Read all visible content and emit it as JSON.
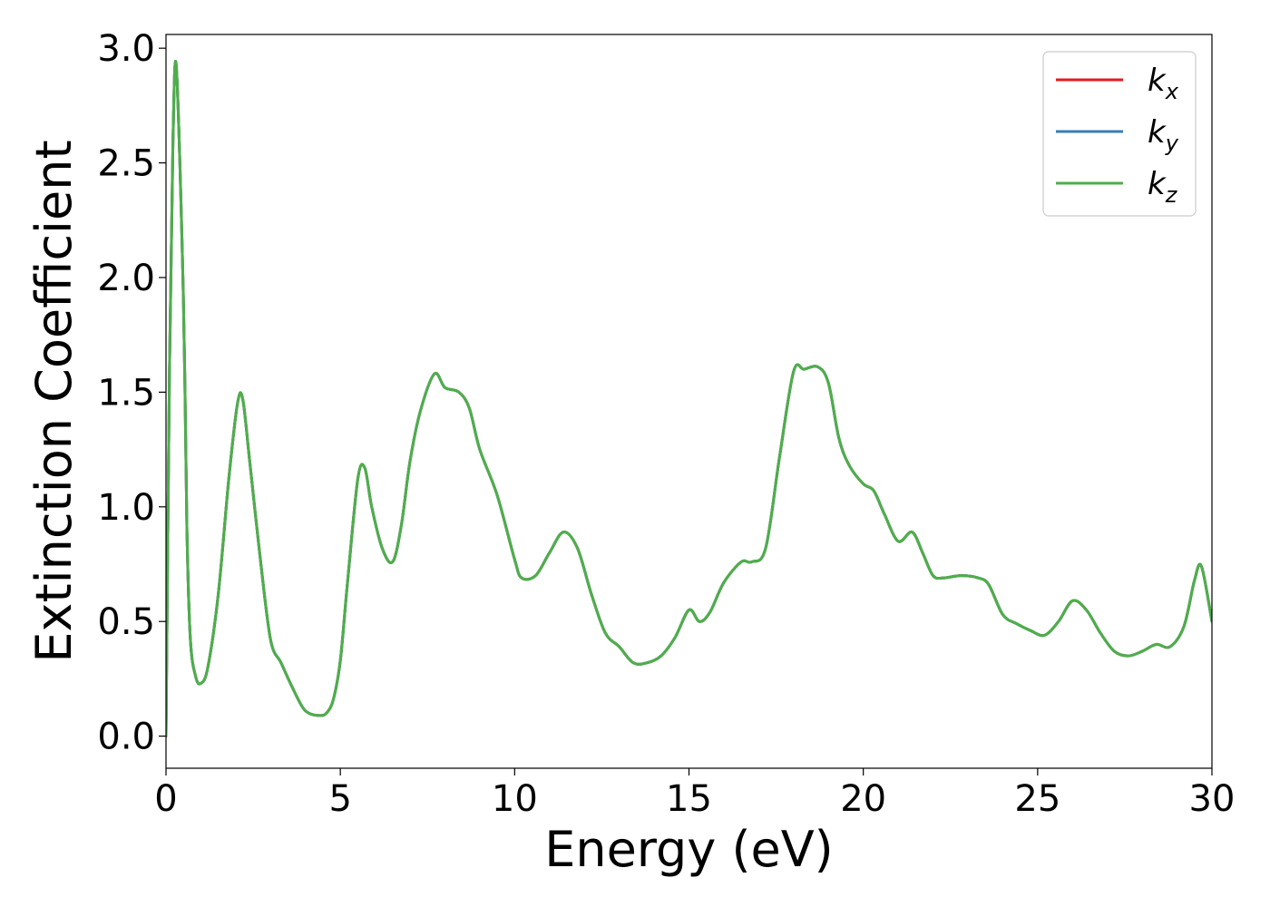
{
  "chart_data": {
    "type": "line",
    "xlabel": "Energy (eV)",
    "ylabel": "Extinction Coefficient",
    "xlim": [
      0,
      30
    ],
    "ylim": [
      -0.14,
      3.06
    ],
    "xticks": [
      0,
      5,
      10,
      15,
      20,
      25,
      30
    ],
    "xtick_labels": [
      "0",
      "5",
      "10",
      "15",
      "20",
      "25",
      "30"
    ],
    "yticks": [
      0.0,
      0.5,
      1.0,
      1.5,
      2.0,
      2.5,
      3.0
    ],
    "ytick_labels": [
      "0.0",
      "0.5",
      "1.0",
      "1.5",
      "2.0",
      "2.5",
      "3.0"
    ],
    "grid": false,
    "legend_position": "top-right",
    "x": [
      0,
      0.1,
      0.2,
      0.3,
      0.5,
      0.6,
      0.7,
      0.85,
      1.0,
      1.2,
      1.5,
      1.8,
      2.05,
      2.2,
      2.4,
      2.7,
      3.0,
      3.3,
      3.6,
      3.9,
      4.1,
      4.4,
      4.6,
      4.8,
      5.0,
      5.2,
      5.5,
      5.7,
      5.9,
      6.2,
      6.5,
      6.75,
      7.0,
      7.3,
      7.7,
      8.0,
      8.4,
      8.7,
      9.0,
      9.5,
      10.0,
      10.2,
      10.6,
      11.0,
      11.4,
      11.8,
      12.2,
      12.6,
      13.0,
      13.4,
      13.8,
      14.2,
      14.6,
      15.0,
      15.3,
      15.6,
      16.0,
      16.5,
      16.8,
      17.2,
      17.6,
      18.0,
      18.3,
      18.7,
      19.0,
      19.3,
      19.6,
      20.0,
      20.3,
      20.6,
      21.0,
      21.4,
      21.7,
      22.0,
      22.3,
      22.8,
      23.3,
      23.6,
      24.0,
      24.4,
      24.8,
      25.2,
      25.6,
      26.0,
      26.4,
      26.8,
      27.2,
      27.6,
      28.0,
      28.4,
      28.8,
      29.2,
      29.5,
      29.7,
      30.0
    ],
    "series": [
      {
        "name": "k_x",
        "color": "#e41a1c",
        "y": [
          0.0,
          1.6,
          2.6,
          2.91,
          1.9,
          0.9,
          0.42,
          0.26,
          0.23,
          0.3,
          0.62,
          1.12,
          1.45,
          1.47,
          1.2,
          0.78,
          0.42,
          0.32,
          0.22,
          0.13,
          0.1,
          0.09,
          0.1,
          0.16,
          0.33,
          0.66,
          1.12,
          1.17,
          1.0,
          0.82,
          0.76,
          0.92,
          1.2,
          1.42,
          1.58,
          1.52,
          1.5,
          1.43,
          1.25,
          1.05,
          0.77,
          0.69,
          0.7,
          0.8,
          0.89,
          0.82,
          0.62,
          0.45,
          0.39,
          0.32,
          0.32,
          0.35,
          0.43,
          0.55,
          0.5,
          0.54,
          0.67,
          0.76,
          0.76,
          0.82,
          1.22,
          1.59,
          1.6,
          1.61,
          1.54,
          1.3,
          1.18,
          1.1,
          1.07,
          0.97,
          0.85,
          0.89,
          0.8,
          0.7,
          0.69,
          0.7,
          0.69,
          0.66,
          0.53,
          0.49,
          0.46,
          0.44,
          0.5,
          0.59,
          0.55,
          0.45,
          0.37,
          0.35,
          0.37,
          0.4,
          0.39,
          0.48,
          0.68,
          0.74,
          0.5
        ]
      },
      {
        "name": "k_y",
        "color": "#377eb8",
        "y": [
          0.0,
          1.6,
          2.6,
          2.91,
          1.9,
          0.9,
          0.42,
          0.26,
          0.23,
          0.3,
          0.62,
          1.12,
          1.45,
          1.47,
          1.2,
          0.78,
          0.42,
          0.32,
          0.22,
          0.13,
          0.1,
          0.09,
          0.1,
          0.16,
          0.33,
          0.66,
          1.12,
          1.17,
          1.0,
          0.82,
          0.76,
          0.92,
          1.2,
          1.42,
          1.58,
          1.52,
          1.5,
          1.43,
          1.25,
          1.05,
          0.77,
          0.69,
          0.7,
          0.8,
          0.89,
          0.82,
          0.62,
          0.45,
          0.39,
          0.32,
          0.32,
          0.35,
          0.43,
          0.55,
          0.5,
          0.54,
          0.67,
          0.76,
          0.76,
          0.82,
          1.22,
          1.59,
          1.6,
          1.61,
          1.54,
          1.3,
          1.18,
          1.1,
          1.07,
          0.97,
          0.85,
          0.89,
          0.8,
          0.7,
          0.69,
          0.7,
          0.69,
          0.66,
          0.53,
          0.49,
          0.46,
          0.44,
          0.5,
          0.59,
          0.55,
          0.45,
          0.37,
          0.35,
          0.37,
          0.4,
          0.39,
          0.48,
          0.68,
          0.74,
          0.5
        ]
      },
      {
        "name": "k_z",
        "color": "#4daf4a",
        "y": [
          0.0,
          1.6,
          2.6,
          2.91,
          1.9,
          0.9,
          0.42,
          0.26,
          0.23,
          0.3,
          0.62,
          1.12,
          1.45,
          1.47,
          1.2,
          0.78,
          0.42,
          0.32,
          0.22,
          0.13,
          0.1,
          0.09,
          0.1,
          0.16,
          0.33,
          0.66,
          1.12,
          1.17,
          1.0,
          0.82,
          0.76,
          0.92,
          1.2,
          1.42,
          1.58,
          1.52,
          1.5,
          1.43,
          1.25,
          1.05,
          0.77,
          0.69,
          0.7,
          0.8,
          0.89,
          0.82,
          0.62,
          0.45,
          0.39,
          0.32,
          0.32,
          0.35,
          0.43,
          0.55,
          0.5,
          0.54,
          0.67,
          0.76,
          0.76,
          0.82,
          1.22,
          1.59,
          1.6,
          1.61,
          1.54,
          1.3,
          1.18,
          1.1,
          1.07,
          0.97,
          0.85,
          0.89,
          0.8,
          0.7,
          0.69,
          0.7,
          0.69,
          0.66,
          0.53,
          0.49,
          0.46,
          0.44,
          0.5,
          0.59,
          0.55,
          0.45,
          0.37,
          0.35,
          0.37,
          0.4,
          0.39,
          0.48,
          0.68,
          0.74,
          0.5
        ]
      }
    ],
    "legend": [
      {
        "base": "k",
        "sub": "x",
        "color": "#e41a1c"
      },
      {
        "base": "k",
        "sub": "y",
        "color": "#377eb8"
      },
      {
        "base": "k",
        "sub": "z",
        "color": "#4daf4a"
      }
    ]
  }
}
